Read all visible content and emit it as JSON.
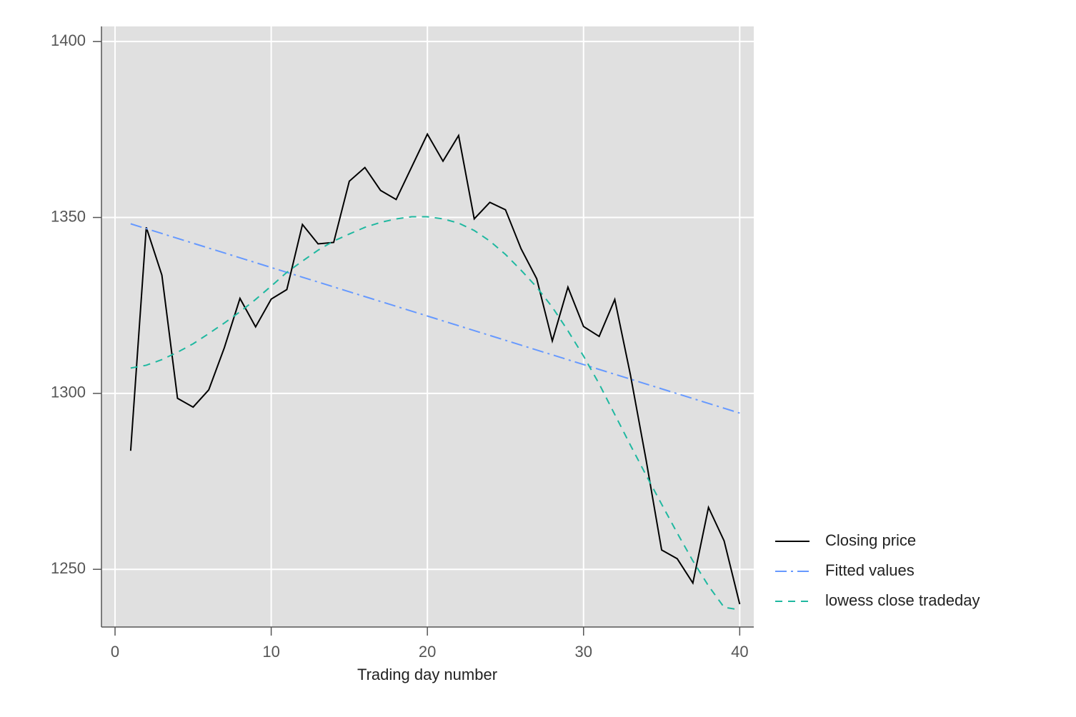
{
  "chart_data": {
    "type": "line",
    "x_label": "Trading day number",
    "xlim": [
      -0.87,
      40.9
    ],
    "xticks": [
      0,
      10,
      20,
      30,
      40
    ],
    "ylim": [
      1233.6,
      1404.3
    ],
    "yticks": [
      1250,
      1300,
      1350,
      1400
    ],
    "grid": true,
    "legend": "right",
    "series": [
      {
        "name": "Closing price",
        "color": "#000000",
        "dash": "solid",
        "x": [
          1,
          2,
          3,
          4,
          5,
          6,
          7,
          8,
          9,
          10,
          11,
          12,
          13,
          14,
          15,
          16,
          17,
          18,
          19,
          20,
          21,
          22,
          23,
          24,
          25,
          26,
          27,
          28,
          29,
          30,
          31,
          32,
          33,
          34,
          35,
          36,
          37,
          38,
          39,
          40
        ],
        "values": [
          1283.7,
          1347.2,
          1333.6,
          1298.6,
          1296.1,
          1301.0,
          1313.0,
          1327.0,
          1318.9,
          1326.8,
          1329.5,
          1348.0,
          1342.5,
          1342.9,
          1360.3,
          1364.2,
          1357.7,
          1355.1,
          1364.4,
          1373.7,
          1366.0,
          1373.3,
          1349.6,
          1354.3,
          1352.2,
          1341.1,
          1332.6,
          1314.9,
          1330.2,
          1319.0,
          1316.2,
          1326.7,
          1305.3,
          1281.2,
          1255.5,
          1253.0,
          1246.1,
          1267.6,
          1258.1,
          1240.1
        ]
      },
      {
        "name": "Fitted values",
        "color": "#6699ff",
        "dash": "dashdot",
        "x": [
          1,
          40
        ],
        "values": [
          1348.2,
          1294.4
        ]
      },
      {
        "name": "lowess close tradeday",
        "color": "#1fb8a0",
        "dash": "dashed",
        "x": [
          1,
          2,
          3,
          4,
          5,
          6,
          7,
          8,
          9,
          10,
          11,
          12,
          13,
          14,
          15,
          16,
          17,
          18,
          19,
          20,
          21,
          22,
          23,
          24,
          25,
          26,
          27,
          28,
          29,
          30,
          31,
          32,
          33,
          34,
          35,
          36,
          37,
          38,
          39,
          40
        ],
        "values": [
          1307.2,
          1308.0,
          1309.6,
          1311.7,
          1314.1,
          1317.0,
          1320.0,
          1323.2,
          1326.7,
          1330.5,
          1334.4,
          1337.6,
          1340.7,
          1343.3,
          1345.3,
          1347.2,
          1348.6,
          1349.6,
          1350.2,
          1350.2,
          1349.6,
          1348.4,
          1346.3,
          1343.3,
          1339.5,
          1335.0,
          1330.2,
          1324.5,
          1317.8,
          1310.6,
          1302.7,
          1294.0,
          1285.3,
          1276.8,
          1268.5,
          1260.3,
          1252.4,
          1245.3,
          1239.2,
          1238.5
        ]
      }
    ]
  }
}
